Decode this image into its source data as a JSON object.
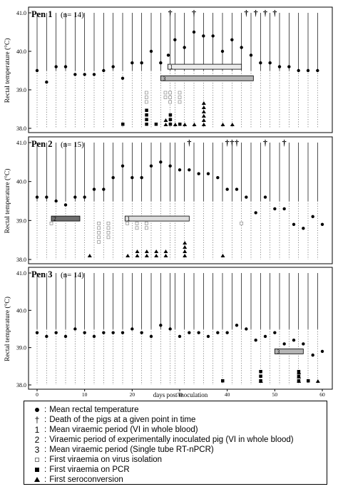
{
  "chart_data": {
    "type": "scatter",
    "x_label": "days post inoculation",
    "y_label": "Rectal temperature (°C)",
    "x_ticks": [
      0,
      10,
      20,
      30,
      40,
      50,
      60
    ],
    "xlim": [
      -2,
      62
    ],
    "y_ticks": [
      "38.0",
      "39.0",
      "40.0",
      "41.0"
    ],
    "ylim": [
      38.0,
      41.0
    ],
    "sampling_days": [
      0,
      2,
      4,
      6,
      8,
      10,
      12,
      14,
      16,
      18,
      20,
      22,
      24,
      26,
      28,
      29,
      31,
      33,
      35,
      37,
      39,
      41,
      43,
      45,
      47,
      49,
      51,
      53,
      55,
      57,
      59
    ],
    "panels": [
      {
        "title": "Pen 1",
        "n_label": "(n= 14)",
        "mean_temperature": [
          [
            0,
            39.5
          ],
          [
            2,
            39.2
          ],
          [
            4,
            39.6
          ],
          [
            6,
            39.6
          ],
          [
            8,
            39.4
          ],
          [
            10,
            39.4
          ],
          [
            12,
            39.4
          ],
          [
            14,
            39.5
          ],
          [
            16,
            39.6
          ],
          [
            18,
            39.3
          ],
          [
            20,
            39.7
          ],
          [
            22,
            39.7
          ],
          [
            24,
            40.0
          ],
          [
            26,
            39.7
          ],
          [
            27.6,
            39.9
          ],
          [
            29,
            40.3
          ],
          [
            31,
            40.1
          ],
          [
            33,
            40.5
          ],
          [
            35,
            40.4
          ],
          [
            37,
            40.4
          ],
          [
            39,
            40.0
          ],
          [
            41,
            40.3
          ],
          [
            43,
            40.1
          ],
          [
            45,
            39.9
          ],
          [
            47,
            39.7
          ],
          [
            49,
            39.7
          ],
          [
            51,
            39.6
          ],
          [
            53,
            39.6
          ],
          [
            55,
            39.5
          ],
          [
            57,
            39.5
          ],
          [
            59,
            39.5
          ]
        ],
        "deaths": [
          28,
          33,
          44,
          46,
          48,
          50
        ],
        "bars": [
          {
            "label": "1",
            "start": 27.5,
            "end": 43,
            "y": 39.6,
            "fill": "#ececec"
          },
          {
            "label": "3",
            "start": 26,
            "end": 45.5,
            "y": 39.3,
            "fill": "#b4b4b4"
          }
        ],
        "first_viraemia_vi": [
          [
            23,
            3
          ],
          [
            27,
            2
          ],
          [
            28,
            3
          ],
          [
            30,
            3
          ]
        ],
        "first_viraemia_pcr": [
          [
            18,
            1
          ],
          [
            23,
            4
          ],
          [
            25,
            1
          ],
          [
            28,
            3
          ],
          [
            30,
            1
          ]
        ],
        "first_seroconversion": [
          [
            27,
            2
          ],
          [
            29,
            1
          ],
          [
            31,
            1
          ],
          [
            33,
            1
          ],
          [
            35,
            6
          ],
          [
            39,
            1
          ],
          [
            41,
            1
          ]
        ]
      },
      {
        "title": "Pen 2",
        "n_label": "(n= 15)",
        "mean_temperature": [
          [
            0,
            39.6
          ],
          [
            2,
            39.6
          ],
          [
            4,
            39.5
          ],
          [
            6,
            39.4
          ],
          [
            8,
            39.6
          ],
          [
            10,
            39.6
          ],
          [
            12,
            39.8
          ],
          [
            14,
            39.8
          ],
          [
            16,
            40.1
          ],
          [
            18,
            40.4
          ],
          [
            20,
            40.1
          ],
          [
            22,
            40.1
          ],
          [
            24,
            40.4
          ],
          [
            26,
            40.5
          ],
          [
            28,
            40.4
          ],
          [
            30,
            40.3
          ],
          [
            32,
            40.3
          ],
          [
            34,
            40.2
          ],
          [
            36,
            40.2
          ],
          [
            38,
            40.1
          ],
          [
            40,
            39.8
          ],
          [
            42,
            39.8
          ],
          [
            44,
            39.6
          ],
          [
            46,
            39.2
          ],
          [
            48,
            39.6
          ],
          [
            50,
            39.3
          ],
          [
            52,
            39.3
          ],
          [
            54,
            38.9
          ],
          [
            56,
            38.8
          ],
          [
            58,
            39.1
          ],
          [
            60,
            38.9
          ]
        ],
        "deaths": [
          32,
          40,
          41,
          42,
          48,
          52
        ],
        "bars": [
          {
            "label": "2",
            "start": 3,
            "end": 9,
            "y": 39.05,
            "fill": "#6e6e6e"
          },
          {
            "label": "1",
            "start": 18.5,
            "end": 32,
            "y": 39.05,
            "fill": "#dcdcdc"
          }
        ],
        "first_viraemia_vi": [
          [
            3,
            1
          ],
          [
            13,
            5
          ],
          [
            15,
            4
          ],
          [
            19,
            1
          ],
          [
            21,
            2
          ],
          [
            23,
            2
          ],
          [
            43,
            1
          ]
        ],
        "first_viraemia_pcr": [],
        "first_seroconversion": [
          [
            11,
            1
          ],
          [
            19,
            1
          ],
          [
            21,
            2
          ],
          [
            23,
            2
          ],
          [
            25,
            2
          ],
          [
            27,
            2
          ],
          [
            31,
            4
          ],
          [
            39,
            1
          ]
        ]
      },
      {
        "title": "Pen 3",
        "n_label": "(n= 14)",
        "mean_temperature": [
          [
            0,
            39.4
          ],
          [
            2,
            39.3
          ],
          [
            4,
            39.4
          ],
          [
            6,
            39.3
          ],
          [
            8,
            39.5
          ],
          [
            10,
            39.4
          ],
          [
            12,
            39.3
          ],
          [
            14,
            39.4
          ],
          [
            16,
            39.4
          ],
          [
            18,
            39.4
          ],
          [
            20,
            39.5
          ],
          [
            22,
            39.4
          ],
          [
            24,
            39.3
          ],
          [
            26,
            39.6
          ],
          [
            28,
            39.5
          ],
          [
            30,
            39.3
          ],
          [
            32,
            39.4
          ],
          [
            34,
            39.4
          ],
          [
            36,
            39.3
          ],
          [
            38,
            39.4
          ],
          [
            40,
            39.4
          ],
          [
            42,
            39.6
          ],
          [
            44,
            39.5
          ],
          [
            46,
            39.2
          ],
          [
            48,
            39.3
          ],
          [
            50,
            39.4
          ],
          [
            52,
            39.1
          ],
          [
            54,
            39.2
          ],
          [
            56,
            39.1
          ],
          [
            58,
            38.8
          ],
          [
            60,
            38.9
          ]
        ],
        "deaths": [],
        "bars": [
          {
            "label": "3",
            "start": 50,
            "end": 56,
            "y": 38.9,
            "fill": "#b4b4b4"
          }
        ],
        "first_viraemia_vi": [],
        "first_viraemia_pcr": [
          [
            39,
            1
          ],
          [
            47,
            3
          ],
          [
            55,
            3
          ],
          [
            57,
            1
          ]
        ],
        "first_seroconversion": [
          [
            47,
            1
          ],
          [
            55,
            3
          ],
          [
            59,
            1
          ]
        ]
      }
    ]
  },
  "legend": {
    "items": [
      {
        "symbol": "dot",
        "text": "Mean rectal temperature"
      },
      {
        "symbol": "cross",
        "symbol_text": "†",
        "text": "Death of the pigs at a given point in time"
      },
      {
        "symbol": "text",
        "symbol_text": "1",
        "text": "Mean viraemic period (VI in whole blood)"
      },
      {
        "symbol": "text",
        "symbol_text": "2",
        "text": "Viraemic period of experimentally inoculated pig (VI in whole blood)"
      },
      {
        "symbol": "text",
        "symbol_text": "3",
        "text": "Mean viraemic period (Single tube RT-nPCR)"
      },
      {
        "symbol": "open-square",
        "text": "First viraemia on virus isolation"
      },
      {
        "symbol": "filled-square",
        "text": "First viraemia on PCR"
      },
      {
        "symbol": "triangle",
        "text": "First seroconversion"
      }
    ]
  }
}
